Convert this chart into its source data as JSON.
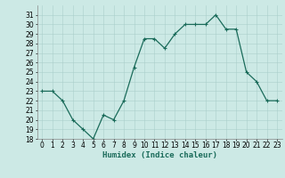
{
  "x": [
    0,
    1,
    2,
    3,
    4,
    5,
    6,
    7,
    8,
    9,
    10,
    11,
    12,
    13,
    14,
    15,
    16,
    17,
    18,
    19,
    20,
    21,
    22,
    23
  ],
  "y": [
    23,
    23,
    22,
    20,
    19,
    18,
    20.5,
    20,
    22,
    25.5,
    28.5,
    28.5,
    27.5,
    29,
    30,
    30,
    30,
    31,
    29.5,
    29.5,
    25,
    24,
    22,
    22
  ],
  "line_color": "#1a6b5a",
  "marker": "+",
  "marker_size": 3,
  "marker_linewidth": 0.8,
  "bg_color": "#cce9e5",
  "grid_color": "#aacfcb",
  "xlabel": "Humidex (Indice chaleur)",
  "ylim": [
    18,
    32
  ],
  "xlim": [
    -0.5,
    23.5
  ],
  "yticks": [
    18,
    19,
    20,
    21,
    22,
    23,
    24,
    25,
    26,
    27,
    28,
    29,
    30,
    31
  ],
  "xticks": [
    0,
    1,
    2,
    3,
    4,
    5,
    6,
    7,
    8,
    9,
    10,
    11,
    12,
    13,
    14,
    15,
    16,
    17,
    18,
    19,
    20,
    21,
    22,
    23
  ],
  "tick_fontsize": 5.5,
  "label_fontsize": 6.5
}
